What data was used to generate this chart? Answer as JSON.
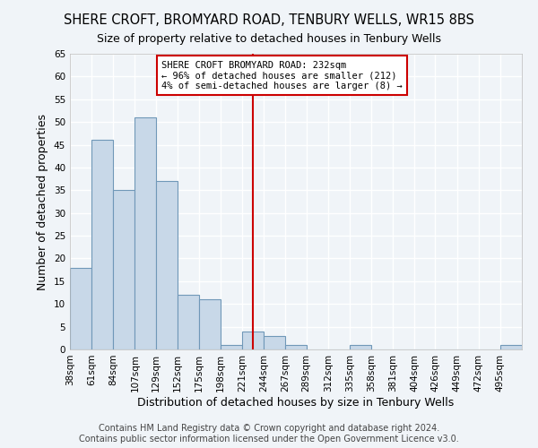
{
  "title": "SHERE CROFT, BROMYARD ROAD, TENBURY WELLS, WR15 8BS",
  "subtitle": "Size of property relative to detached houses in Tenbury Wells",
  "xlabel": "Distribution of detached houses by size in Tenbury Wells",
  "ylabel": "Number of detached properties",
  "bin_labels": [
    "38sqm",
    "61sqm",
    "84sqm",
    "107sqm",
    "129sqm",
    "152sqm",
    "175sqm",
    "198sqm",
    "221sqm",
    "244sqm",
    "267sqm",
    "289sqm",
    "312sqm",
    "335sqm",
    "358sqm",
    "381sqm",
    "404sqm",
    "426sqm",
    "449sqm",
    "472sqm",
    "495sqm"
  ],
  "bin_edges": [
    38,
    61,
    84,
    107,
    129,
    152,
    175,
    198,
    221,
    244,
    267,
    289,
    312,
    335,
    358,
    381,
    404,
    426,
    449,
    472,
    495
  ],
  "bar_heights": [
    18,
    46,
    35,
    51,
    37,
    12,
    11,
    1,
    4,
    3,
    1,
    0,
    0,
    1,
    0,
    0,
    0,
    0,
    0,
    0,
    1
  ],
  "bar_color": "#c8d8e8",
  "bar_edge_color": "#7098b8",
  "property_line_x": 232,
  "property_line_color": "#cc0000",
  "annotation_text": "SHERE CROFT BROMYARD ROAD: 232sqm\n← 96% of detached houses are smaller (212)\n4% of semi-detached houses are larger (8) →",
  "annotation_box_edge_color": "#cc0000",
  "ylim": [
    0,
    65
  ],
  "yticks": [
    0,
    5,
    10,
    15,
    20,
    25,
    30,
    35,
    40,
    45,
    50,
    55,
    60,
    65
  ],
  "footer1": "Contains HM Land Registry data © Crown copyright and database right 2024.",
  "footer2": "Contains public sector information licensed under the Open Government Licence v3.0.",
  "bg_color": "#f0f4f8",
  "grid_color": "#ffffff",
  "title_fontsize": 10.5,
  "subtitle_fontsize": 9,
  "axis_label_fontsize": 9,
  "tick_fontsize": 7.5,
  "footer_fontsize": 7,
  "annotation_fontsize": 7.5
}
